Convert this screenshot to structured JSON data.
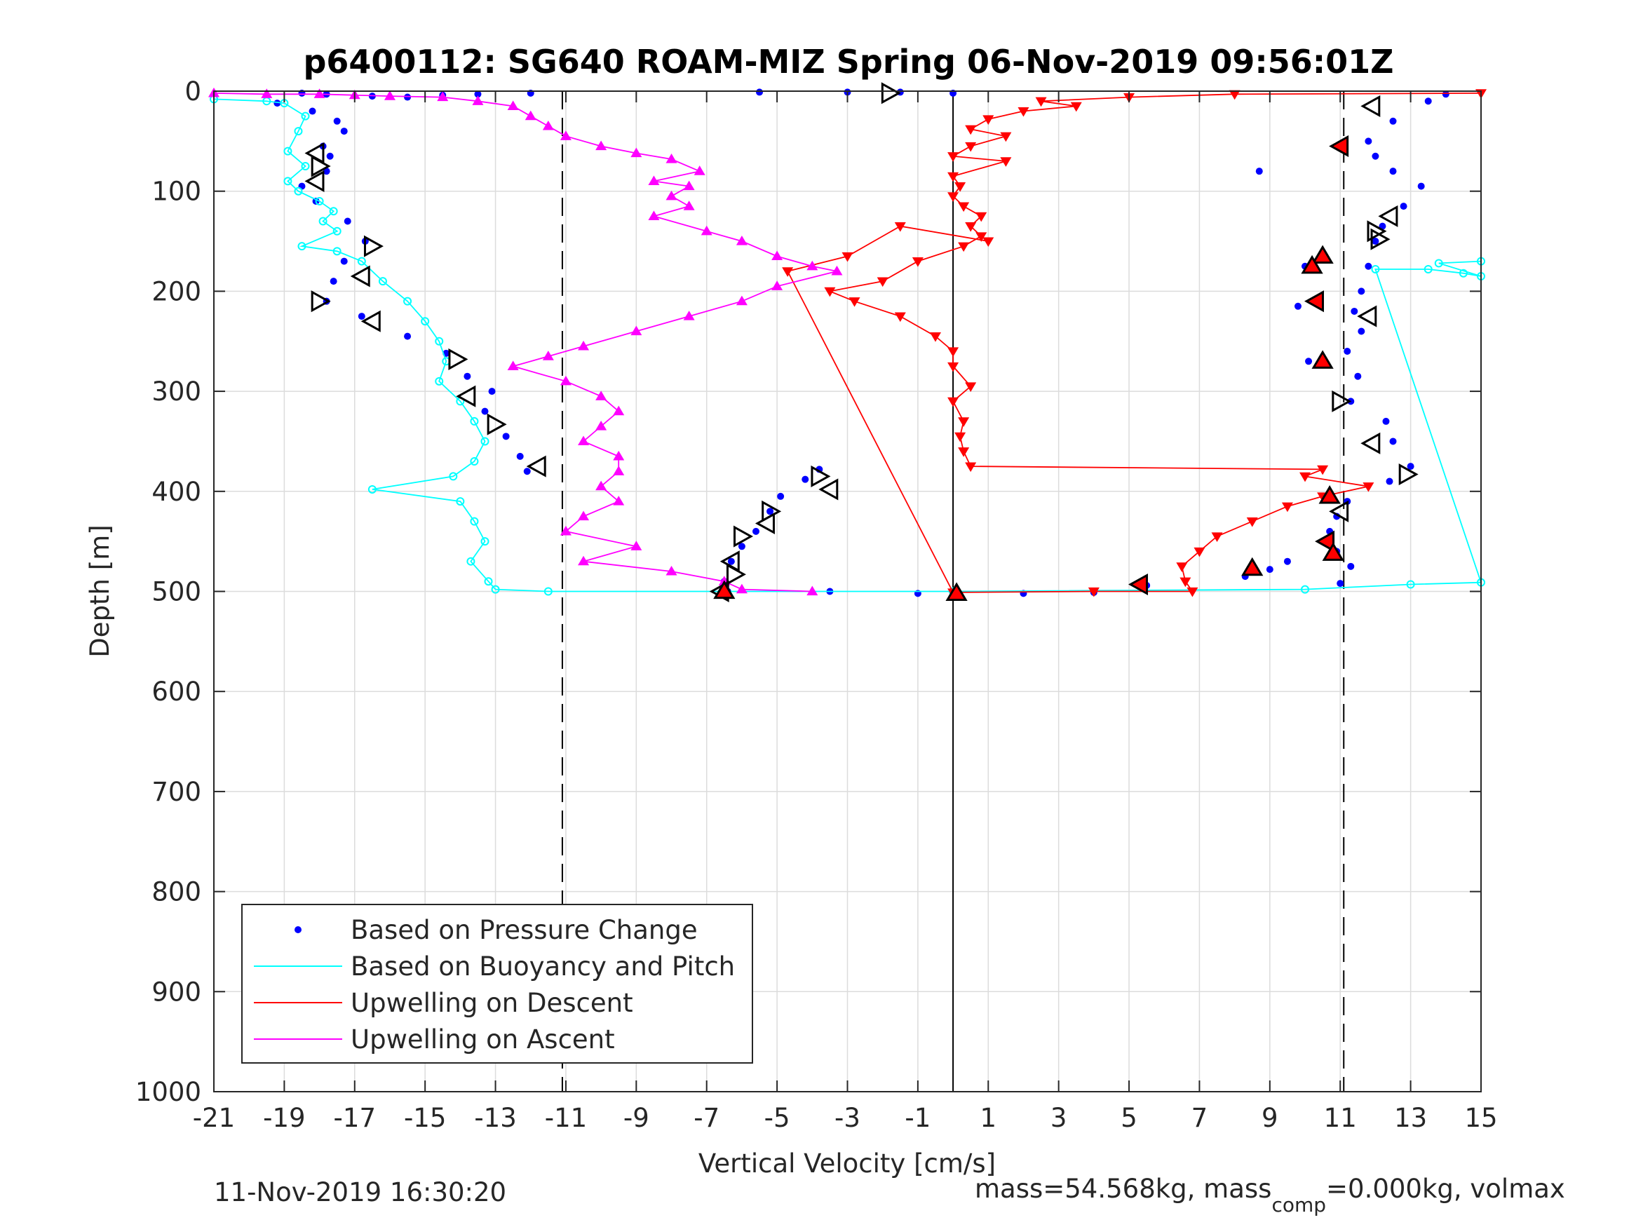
{
  "figure": {
    "title": "p6400112: SG640 ROAM-MIZ Spring 06-Nov-2019 09:56:01Z",
    "timestamp": "11-Nov-2019 16:30:20",
    "footer_mass": "mass=54.568kg, mass",
    "footer_sub": "comp",
    "footer_rest": "=0.000kg, volmax"
  },
  "chart_data": {
    "type": "scatter",
    "xlabel": "Vertical Velocity [cm/s]",
    "ylabel": "Depth [m]",
    "xlim": [
      -21,
      15
    ],
    "ylim": [
      0,
      1000
    ],
    "y_reversed": true,
    "grid": true,
    "x_ticks": [
      "-21",
      "-19",
      "-17",
      "-15",
      "-13",
      "-11",
      "-9",
      "-7",
      "-5",
      "-3",
      "-1",
      "1",
      "3",
      "5",
      "7",
      "9",
      "11",
      "13",
      "15"
    ],
    "y_ticks": [
      "0",
      "100",
      "200",
      "300",
      "400",
      "500",
      "600",
      "700",
      "800",
      "900",
      "1000"
    ],
    "reference_lines": [
      {
        "x": -11.1,
        "style": "dashed"
      },
      {
        "x": 0,
        "style": "solid"
      },
      {
        "x": 11.1,
        "style": "dashed"
      }
    ],
    "legend_position": "bottom-left",
    "colors": {
      "pressure": "#0000ff",
      "buoyancy": "#00ffff",
      "descent": "#ff0000",
      "ascent": "#ff00ff"
    },
    "series": [
      {
        "name": "Based on Pressure Change",
        "marker": "dot",
        "color": "#0000ff",
        "points": [
          [
            -18.5,
            2
          ],
          [
            -17.8,
            3
          ],
          [
            -16.5,
            5
          ],
          [
            -15.5,
            6
          ],
          [
            -14.5,
            4
          ],
          [
            -13.5,
            3
          ],
          [
            -12,
            2
          ],
          [
            -5.5,
            1
          ],
          [
            -3,
            1
          ],
          [
            -1.5,
            1
          ],
          [
            0,
            2
          ],
          [
            -19.2,
            12
          ],
          [
            -18.2,
            20
          ],
          [
            -17.5,
            30
          ],
          [
            -17.3,
            40
          ],
          [
            -17.9,
            55
          ],
          [
            -17.7,
            65
          ],
          [
            -17.8,
            80
          ],
          [
            -18.5,
            95
          ],
          [
            -18.1,
            110
          ],
          [
            -17.2,
            130
          ],
          [
            -16.7,
            150
          ],
          [
            -17.3,
            170
          ],
          [
            -17.6,
            190
          ],
          [
            -17.8,
            210
          ],
          [
            -16.8,
            225
          ],
          [
            -15.5,
            245
          ],
          [
            -14.4,
            262
          ],
          [
            -13.8,
            285
          ],
          [
            -13.1,
            300
          ],
          [
            -13.3,
            320
          ],
          [
            -12.7,
            345
          ],
          [
            -12.3,
            365
          ],
          [
            -12.1,
            380
          ],
          [
            -3.8,
            378
          ],
          [
            -4.2,
            388
          ],
          [
            -4.9,
            405
          ],
          [
            -5.2,
            420
          ],
          [
            -5.6,
            440
          ],
          [
            -6.0,
            455
          ],
          [
            -6.3,
            470
          ],
          [
            -6.5,
            490
          ],
          [
            -6.4,
            500
          ],
          [
            -3.5,
            500
          ],
          [
            -1,
            502
          ],
          [
            0,
            503
          ],
          [
            2,
            502
          ],
          [
            4,
            501
          ],
          [
            5.5,
            494
          ],
          [
            14,
            3
          ],
          [
            13.5,
            10
          ],
          [
            12.5,
            30
          ],
          [
            11.8,
            50
          ],
          [
            12,
            65
          ],
          [
            12.5,
            80
          ],
          [
            13.3,
            95
          ],
          [
            12.8,
            115
          ],
          [
            12.2,
            135
          ],
          [
            12,
            150
          ],
          [
            11.8,
            175
          ],
          [
            11.6,
            200
          ],
          [
            11.4,
            220
          ],
          [
            11.6,
            240
          ],
          [
            11.2,
            260
          ],
          [
            11.5,
            285
          ],
          [
            11.3,
            310
          ],
          [
            12.3,
            330
          ],
          [
            12.5,
            350
          ],
          [
            13,
            375
          ],
          [
            12.4,
            390
          ],
          [
            11.2,
            410
          ],
          [
            10.9,
            425
          ],
          [
            10.7,
            440
          ],
          [
            10.9,
            460
          ],
          [
            11.3,
            475
          ],
          [
            11,
            492
          ],
          [
            9,
            478
          ],
          [
            8.3,
            485
          ],
          [
            9.5,
            470
          ],
          [
            10,
            175
          ],
          [
            9.8,
            215
          ],
          [
            10.1,
            270
          ],
          [
            8.7,
            80
          ]
        ]
      },
      {
        "name": "Based on Buoyancy and Pitch",
        "marker": "circle-line",
        "color": "#00ffff",
        "points": [
          [
            -21,
            8
          ],
          [
            -19.5,
            10
          ],
          [
            -19,
            12
          ],
          [
            -18.4,
            25
          ],
          [
            -18.6,
            40
          ],
          [
            -18.9,
            60
          ],
          [
            -18.4,
            75
          ],
          [
            -18.9,
            90
          ],
          [
            -18.6,
            100
          ],
          [
            -18,
            110
          ],
          [
            -17.6,
            120
          ],
          [
            -17.9,
            130
          ],
          [
            -17.5,
            140
          ],
          [
            -18.5,
            155
          ],
          [
            -17.5,
            160
          ],
          [
            -16.8,
            170
          ],
          [
            -16.2,
            190
          ],
          [
            -15.5,
            210
          ],
          [
            -15,
            230
          ],
          [
            -14.6,
            250
          ],
          [
            -14.4,
            270
          ],
          [
            -14.6,
            290
          ],
          [
            -14.0,
            310
          ],
          [
            -13.6,
            330
          ],
          [
            -13.3,
            350
          ],
          [
            -13.6,
            370
          ],
          [
            -14.2,
            385
          ],
          [
            -16.5,
            398
          ],
          [
            -14.0,
            410
          ],
          [
            -13.6,
            430
          ],
          [
            -13.3,
            450
          ],
          [
            -13.7,
            470
          ],
          [
            -13.2,
            490
          ],
          [
            -13,
            498
          ],
          [
            -11.5,
            500
          ],
          [
            0,
            500
          ],
          [
            10,
            498
          ],
          [
            13,
            493
          ],
          [
            15,
            491
          ],
          [
            12,
            178
          ],
          [
            13.5,
            178
          ],
          [
            14.5,
            182
          ],
          [
            15,
            185
          ],
          [
            13.8,
            172
          ],
          [
            15,
            170
          ]
        ]
      },
      {
        "name": "Upwelling on Descent",
        "marker": "triangle-down",
        "color": "#ff0000",
        "points": [
          [
            15,
            2
          ],
          [
            8,
            3
          ],
          [
            5,
            6
          ],
          [
            2.5,
            10
          ],
          [
            3.5,
            15
          ],
          [
            2,
            20
          ],
          [
            1,
            28
          ],
          [
            0.5,
            38
          ],
          [
            1.5,
            45
          ],
          [
            0.5,
            55
          ],
          [
            0,
            65
          ],
          [
            1.5,
            70
          ],
          [
            0,
            85
          ],
          [
            0.2,
            95
          ],
          [
            0,
            105
          ],
          [
            0.3,
            115
          ],
          [
            0.8,
            125
          ],
          [
            0.5,
            135
          ],
          [
            0.8,
            145
          ],
          [
            0.3,
            155
          ],
          [
            -1,
            170
          ],
          [
            -2,
            190
          ],
          [
            -3.5,
            200
          ],
          [
            -2.8,
            210
          ],
          [
            -1.5,
            225
          ],
          [
            -0.5,
            245
          ],
          [
            0,
            260
          ],
          [
            0,
            275
          ],
          [
            0.5,
            295
          ],
          [
            0,
            310
          ],
          [
            0.3,
            330
          ],
          [
            0.2,
            345
          ],
          [
            0.3,
            360
          ],
          [
            0.5,
            375
          ],
          [
            10.5,
            378
          ],
          [
            10,
            385
          ],
          [
            11.8,
            395
          ],
          [
            10.5,
            405
          ],
          [
            9.5,
            415
          ],
          [
            8.5,
            430
          ],
          [
            7.5,
            445
          ],
          [
            7,
            460
          ],
          [
            6.5,
            475
          ],
          [
            6.6,
            490
          ],
          [
            6.8,
            500
          ],
          [
            4,
            500
          ],
          [
            0,
            501
          ],
          [
            -4.7,
            180
          ],
          [
            -3,
            165
          ],
          [
            -1.5,
            135
          ],
          [
            1,
            150
          ]
        ]
      },
      {
        "name": "Upwelling on Ascent",
        "marker": "triangle-up",
        "color": "#ff00ff",
        "points": [
          [
            -21,
            2
          ],
          [
            -19.5,
            3
          ],
          [
            -18,
            3
          ],
          [
            -17,
            4
          ],
          [
            -16,
            5
          ],
          [
            -14.5,
            6
          ],
          [
            -13.5,
            10
          ],
          [
            -12.5,
            15
          ],
          [
            -12,
            25
          ],
          [
            -11.5,
            35
          ],
          [
            -11,
            45
          ],
          [
            -10,
            55
          ],
          [
            -9,
            62
          ],
          [
            -8,
            68
          ],
          [
            -7.2,
            80
          ],
          [
            -8.5,
            90
          ],
          [
            -7.5,
            95
          ],
          [
            -8,
            105
          ],
          [
            -7.5,
            115
          ],
          [
            -8.5,
            125
          ],
          [
            -7,
            140
          ],
          [
            -6,
            150
          ],
          [
            -5,
            165
          ],
          [
            -4,
            175
          ],
          [
            -3.3,
            180
          ],
          [
            -5,
            195
          ],
          [
            -6,
            210
          ],
          [
            -7.5,
            225
          ],
          [
            -9,
            240
          ],
          [
            -10.5,
            255
          ],
          [
            -11.5,
            265
          ],
          [
            -12.5,
            275
          ],
          [
            -11,
            290
          ],
          [
            -10,
            305
          ],
          [
            -9.5,
            320
          ],
          [
            -10,
            335
          ],
          [
            -10.5,
            350
          ],
          [
            -9.5,
            365
          ],
          [
            -9.5,
            380
          ],
          [
            -10,
            395
          ],
          [
            -9.5,
            410
          ],
          [
            -10.5,
            425
          ],
          [
            -11,
            440
          ],
          [
            -9,
            455
          ],
          [
            -10.5,
            470
          ],
          [
            -8,
            480
          ],
          [
            -6.5,
            490
          ],
          [
            -6,
            498
          ],
          [
            -4,
            500
          ]
        ]
      },
      {
        "name": "",
        "marker": "triangle-hollow",
        "color": "#000000",
        "points": [
          [
            -18.1,
            62
          ],
          [
            -18,
            75
          ],
          [
            -18.1,
            90
          ],
          [
            -16.5,
            155
          ],
          [
            -16.8,
            185
          ],
          [
            -18,
            210
          ],
          [
            -16.5,
            230
          ],
          [
            -14.1,
            268
          ],
          [
            -13.8,
            305
          ],
          [
            -13,
            333
          ],
          [
            -11.8,
            375
          ],
          [
            -3.8,
            385
          ],
          [
            -3.5,
            398
          ],
          [
            -5.2,
            420
          ],
          [
            -5.3,
            432
          ],
          [
            -6,
            445
          ],
          [
            -6.3,
            470
          ],
          [
            -6.2,
            483
          ],
          [
            -6.6,
            500
          ],
          [
            -1.8,
            2
          ],
          [
            11.9,
            15
          ],
          [
            12,
            140
          ],
          [
            12.4,
            125
          ],
          [
            12.1,
            148
          ],
          [
            11.9,
            352
          ],
          [
            12.9,
            383
          ],
          [
            11,
            420
          ],
          [
            11,
            310
          ],
          [
            11.8,
            225
          ]
        ]
      },
      {
        "name": "",
        "marker": "triangle-filled",
        "color": "#ff0000",
        "points": [
          [
            11,
            55
          ],
          [
            10.5,
            165
          ],
          [
            10.2,
            175
          ],
          [
            10.3,
            210
          ],
          [
            10.5,
            270
          ],
          [
            10.7,
            405
          ],
          [
            10.6,
            450
          ],
          [
            10.8,
            462
          ],
          [
            8.5,
            477
          ],
          [
            5.3,
            493
          ],
          [
            0.1,
            502
          ],
          [
            -6.5,
            500
          ]
        ]
      }
    ]
  }
}
